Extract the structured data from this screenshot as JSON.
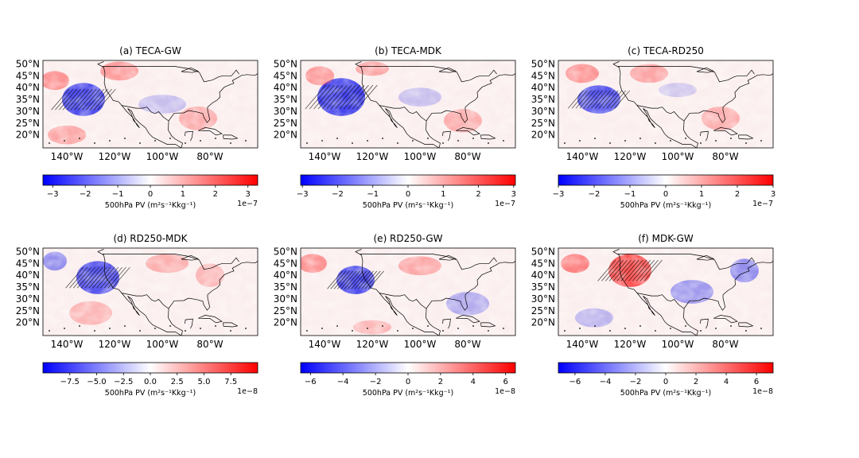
{
  "chart_data": [
    {
      "type": "heatmap",
      "title": "(a) TECA-GW",
      "cbar_label": "500hPa PV (m²s⁻¹Kkg⁻¹)",
      "cbar_exponent": "1e−7",
      "cbar_range": [
        -3.3,
        3.3
      ],
      "cbar_ticks": [
        -3,
        -2,
        -1,
        0,
        1,
        2,
        3
      ],
      "cbar_ticklabels": [
        "−3",
        "−2",
        "−1",
        "0",
        "1",
        "2",
        "3"
      ],
      "lat_ticks": [
        "50°N",
        "45°N",
        "40°N",
        "35°N",
        "30°N",
        "25°N",
        "20°N"
      ],
      "lon_ticks": [
        "140°W",
        "120°W",
        "100°W",
        "80°W"
      ]
    },
    {
      "type": "heatmap",
      "title": "(b) TECA-MDK",
      "cbar_label": "500hPa PV (m²s⁻¹Kkg⁻¹)",
      "cbar_exponent": "1e−7",
      "cbar_range": [
        -3.05,
        3.05
      ],
      "cbar_ticks": [
        -3,
        -2,
        -1,
        0,
        1,
        2,
        3
      ],
      "cbar_ticklabels": [
        "−3",
        "−2",
        "−1",
        "0",
        "1",
        "2",
        "3"
      ],
      "lat_ticks": [
        "50°N",
        "45°N",
        "40°N",
        "35°N",
        "30°N",
        "25°N",
        "20°N"
      ],
      "lon_ticks": [
        "140°W",
        "120°W",
        "100°W",
        "80°W"
      ]
    },
    {
      "type": "heatmap",
      "title": "(c) TECA-RD250",
      "cbar_label": "500hPa PV (m²s⁻¹Kkg⁻¹)",
      "cbar_exponent": "1e−7",
      "cbar_range": [
        -3,
        3
      ],
      "cbar_ticks": [
        -3,
        -2,
        -1,
        0,
        1,
        2,
        3
      ],
      "cbar_ticklabels": [
        "−3",
        "−2",
        "−1",
        "0",
        "1",
        "2",
        "3"
      ],
      "lat_ticks": [
        "50°N",
        "45°N",
        "40°N",
        "35°N",
        "30°N",
        "25°N",
        "20°N"
      ],
      "lon_ticks": [
        "140°W",
        "120°W",
        "100°W",
        "80°W"
      ]
    },
    {
      "type": "heatmap",
      "title": "(d) RD250-MDK",
      "cbar_label": "500hPa PV (m²s⁻¹Kkg⁻¹)",
      "cbar_exponent": "1e−8",
      "cbar_range": [
        -10,
        10
      ],
      "cbar_ticks": [
        -7.5,
        -5,
        -2.5,
        0,
        2.5,
        5,
        7.5
      ],
      "cbar_ticklabels": [
        "−7.5",
        "−5.0",
        "−2.5",
        "0.0",
        "2.5",
        "5.0",
        "7.5"
      ],
      "lat_ticks": [
        "50°N",
        "45°N",
        "40°N",
        "35°N",
        "30°N",
        "25°N",
        "20°N"
      ],
      "lon_ticks": [
        "140°W",
        "120°W",
        "100°W",
        "80°W"
      ]
    },
    {
      "type": "heatmap",
      "title": "(e) RD250-GW",
      "cbar_label": "500hPa PV (m²s⁻¹Kkg⁻¹)",
      "cbar_exponent": "1e−8",
      "cbar_range": [
        -6.6,
        6.6
      ],
      "cbar_ticks": [
        -6,
        -4,
        -2,
        0,
        2,
        4,
        6
      ],
      "cbar_ticklabels": [
        "−6",
        "−4",
        "−2",
        "0",
        "2",
        "4",
        "6"
      ],
      "lat_ticks": [
        "50°N",
        "45°N",
        "40°N",
        "35°N",
        "30°N",
        "25°N",
        "20°N"
      ],
      "lon_ticks": [
        "140°W",
        "120°W",
        "100°W",
        "80°W"
      ]
    },
    {
      "type": "heatmap",
      "title": "(f) MDK-GW",
      "cbar_label": "500hPa PV (m²s⁻¹Kkg⁻¹)",
      "cbar_exponent": "1e−8",
      "cbar_range": [
        -7.1,
        7.1
      ],
      "cbar_ticks": [
        -6,
        -4,
        -2,
        0,
        2,
        4,
        6
      ],
      "cbar_ticklabels": [
        "−6",
        "−4",
        "−2",
        "0",
        "2",
        "4",
        "6"
      ],
      "lat_ticks": [
        "50°N",
        "45°N",
        "40°N",
        "35°N",
        "30°N",
        "25°N",
        "20°N"
      ],
      "lon_ticks": [
        "140°W",
        "120°W",
        "100°W",
        "80°W"
      ]
    }
  ],
  "colormap": {
    "negative": "#0000ff",
    "zero": "#ffffff",
    "positive": "#ff0000"
  }
}
